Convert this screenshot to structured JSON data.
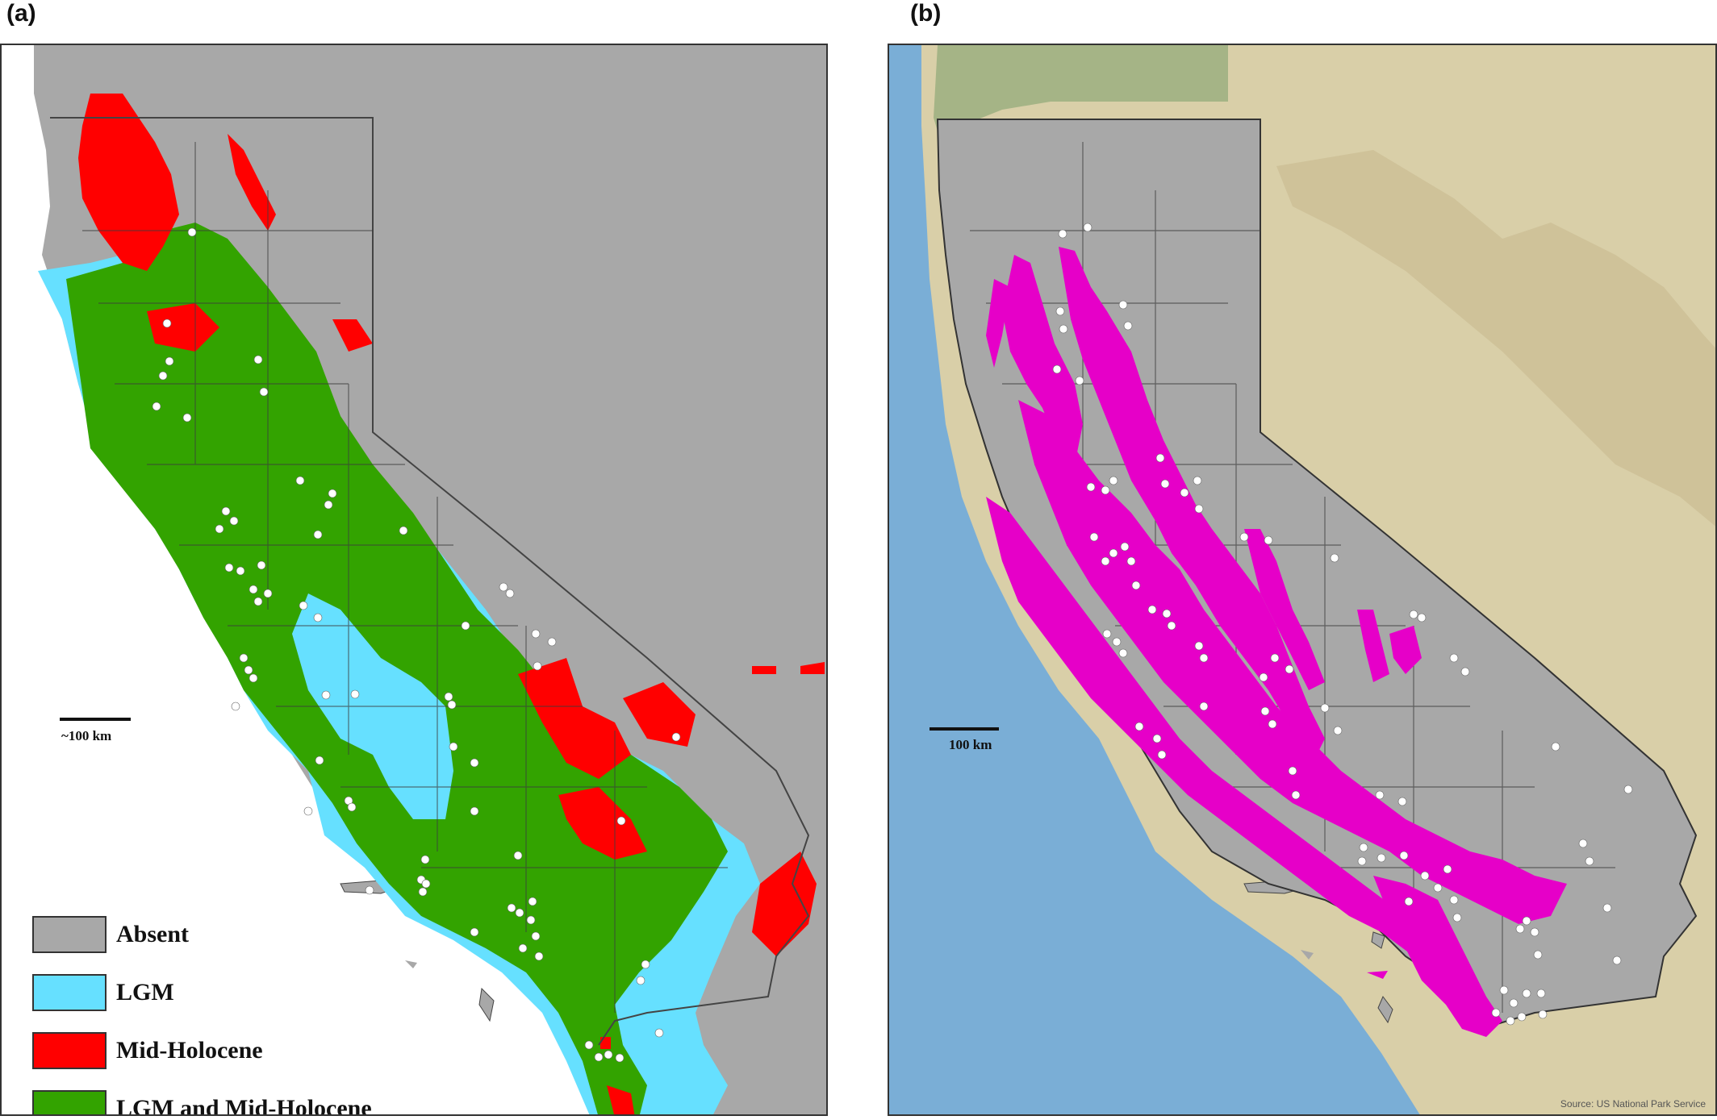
{
  "panels": {
    "a": {
      "label": "(a)",
      "scale_label": "~100 km",
      "legend": [
        {
          "label": "Absent",
          "color": "#a8a8a8"
        },
        {
          "label": "LGM",
          "color": "#66e0ff"
        },
        {
          "label": "Mid-Holocene",
          "color": "#ff0000"
        },
        {
          "label": "LGM and Mid-Holocene",
          "color": "#33a300"
        }
      ]
    },
    "b": {
      "label": "(b)",
      "scale_label": "100 km",
      "source_note": "Source: US National Park Service",
      "colors": {
        "ocean": "#7aaed6",
        "land": "#d9cfa8",
        "state": "#a8a8a8",
        "range": "#e600c8"
      }
    }
  }
}
